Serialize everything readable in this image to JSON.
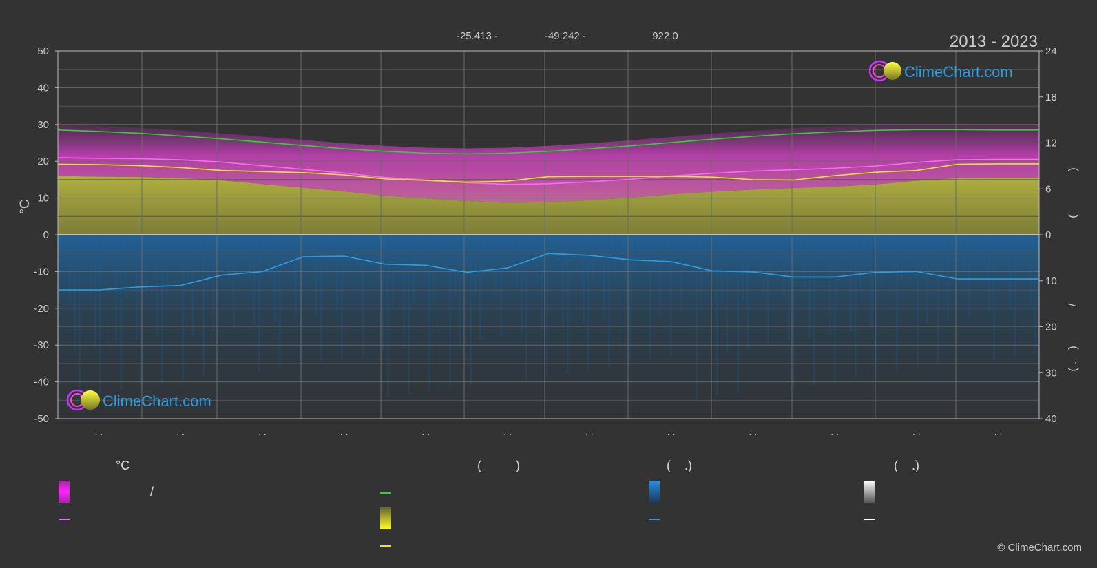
{
  "chart_data": {
    "type": "line",
    "header": {
      "lat": "-25.413 -",
      "lon": "-49.242 -",
      "elevation": "922.0",
      "years": "2013 - 2023"
    },
    "logo_text": "ClimeChart.com",
    "copyright": "© ClimeChart.com",
    "ylabel_left": "°C",
    "ylim_left": [
      -50,
      50
    ],
    "yticks_left": [
      "50",
      "40",
      "30",
      "20",
      "10",
      "0",
      "-10",
      "-20",
      "-30",
      "-40",
      "-50"
    ],
    "yticks_right_top": [
      "24",
      "18",
      "12",
      "6",
      "0"
    ],
    "yticks_right_bottom": [
      "10",
      "20",
      "30",
      "40"
    ],
    "right_label_marks": [
      ")",
      "(",
      "/",
      ")",
      "( ."
    ],
    "month_labels": [
      ". .",
      ". .",
      ". .",
      ". .",
      ". .",
      ". .",
      ". .",
      ". .",
      ". .",
      ". .",
      ". .",
      ". ."
    ],
    "x": [
      0,
      0.5,
      1,
      1.5,
      2,
      2.5,
      3,
      3.5,
      4,
      4.5,
      5,
      5.5,
      6,
      6.5,
      7,
      7.5,
      8,
      8.5,
      9,
      9.5,
      10,
      10.5,
      11,
      11.5,
      12
    ],
    "series": [
      {
        "key": "daylight",
        "color": "#22dd22",
        "values": [
          28.5,
          28.1,
          27.6,
          26.9,
          26.1,
          25.2,
          24.3,
          23.4,
          22.7,
          22.2,
          22.0,
          22.2,
          22.7,
          23.4,
          24.2,
          25.1,
          26.0,
          26.8,
          27.5,
          28.0,
          28.4,
          28.6,
          28.6,
          28.5,
          28.5
        ]
      },
      {
        "key": "max_temp",
        "color": "#ff66ff",
        "values": [
          21.0,
          20.8,
          20.7,
          20.4,
          19.8,
          18.8,
          17.8,
          16.8,
          15.6,
          14.9,
          14.2,
          13.7,
          13.9,
          14.4,
          15.1,
          16.0,
          16.7,
          17.3,
          17.7,
          18.1,
          18.7,
          19.7,
          20.4,
          20.5,
          20.5
        ]
      },
      {
        "key": "sunshine",
        "color": "#e8e820",
        "values": [
          19.2,
          19.1,
          18.8,
          18.3,
          17.5,
          17.2,
          16.9,
          16.3,
          15.2,
          14.8,
          14.3,
          14.6,
          15.8,
          15.9,
          15.9,
          15.9,
          15.7,
          15.0,
          14.9,
          16.1,
          17.0,
          17.5,
          19.2,
          19.3,
          19.3
        ]
      },
      {
        "key": "precip",
        "color": "#2b9de0",
        "values": [
          -15.0,
          -15.0,
          -14.2,
          -13.8,
          -11.0,
          -10.0,
          -6.0,
          -5.8,
          -8.0,
          -8.3,
          -10.2,
          -9.0,
          -5.1,
          -5.6,
          -6.8,
          -7.3,
          -9.8,
          -10.1,
          -11.5,
          -11.5,
          -10.2,
          -10.0,
          -12.0,
          -12.0,
          -12.0
        ]
      }
    ]
  },
  "legend": {
    "col1_head": "°C",
    "col1_slash": "/",
    "col2_head": "(          )",
    "col3_head": "(    .)",
    "col4_head": "(    .)"
  }
}
